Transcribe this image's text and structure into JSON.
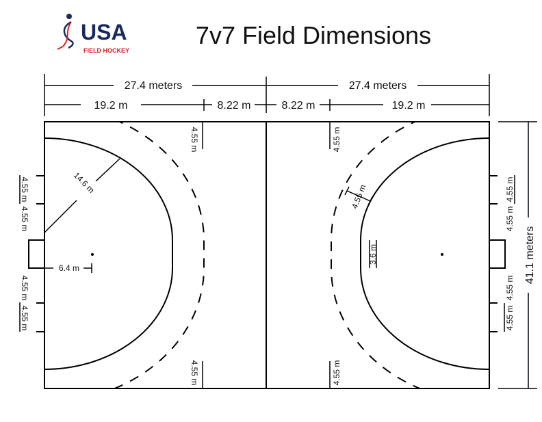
{
  "title": "7v7 Field Dimensions",
  "logo": {
    "main": "USA",
    "sub": "FIELD HOCKEY",
    "colors": {
      "navy": "#1b2a5c",
      "red": "#d2232a"
    }
  },
  "dimensions": {
    "half_length": "27.4 meters",
    "outer_segment": "19.2 m",
    "center_segment": "8.22 m",
    "width": "41.1 meters",
    "circle_radius": "14.6 m",
    "penalty_spot": "6.4 m",
    "circle_straight": "3.6 m",
    "dashed_offset": "4.55 m",
    "sideline_mark": "4.55 m",
    "endline_mark": "4.55 m"
  }
}
